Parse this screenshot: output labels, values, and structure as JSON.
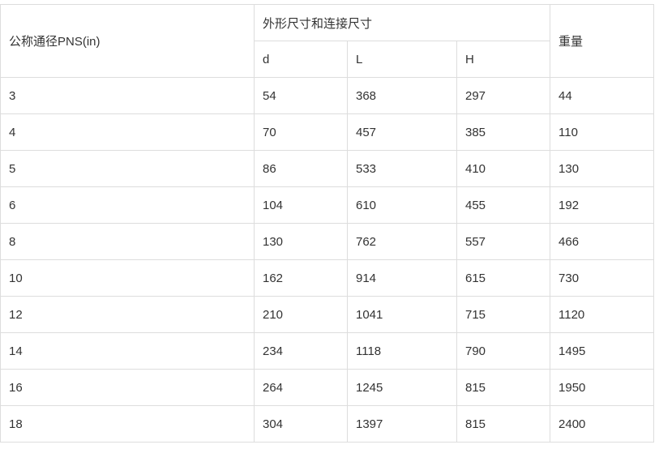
{
  "table": {
    "header": {
      "col1": "公称通径PNS(in)",
      "group": "外形尺寸和连接尺寸",
      "sub": [
        "d",
        "L",
        "H"
      ],
      "weight": "重量"
    },
    "rows": [
      [
        "3",
        "54",
        "368",
        "297",
        "44"
      ],
      [
        "4",
        "70",
        "457",
        "385",
        "110"
      ],
      [
        "5",
        "86",
        "533",
        "410",
        "130"
      ],
      [
        "6",
        "104",
        "610",
        "455",
        "192"
      ],
      [
        "8",
        "130",
        "762",
        "557",
        "466"
      ],
      [
        "10",
        "162",
        "914",
        "615",
        "730"
      ],
      [
        "12",
        "210",
        "1041",
        "715",
        "1120"
      ],
      [
        "14",
        "234",
        "1118",
        "790",
        "1495"
      ],
      [
        "16",
        "264",
        "1245",
        "815",
        "1950"
      ],
      [
        "18",
        "304",
        "1397",
        "815",
        "2400"
      ]
    ]
  }
}
